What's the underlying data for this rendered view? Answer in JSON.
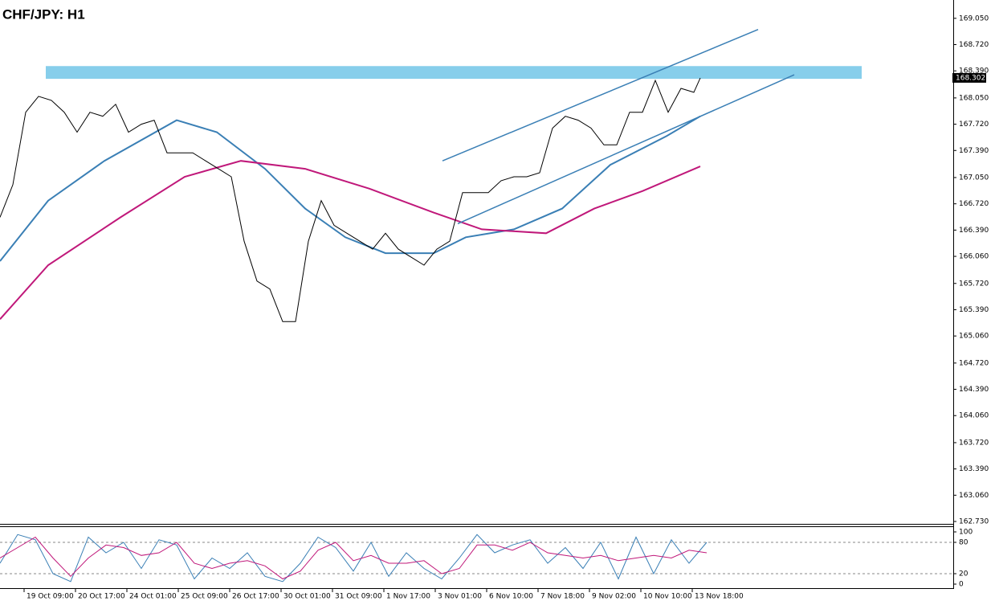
{
  "chart_data": [
    {
      "type": "line",
      "title": "CHF/JPY: H1",
      "x": [
        0,
        8,
        16,
        24,
        32,
        40,
        48,
        56,
        64,
        72,
        80,
        88,
        96,
        104,
        112,
        120,
        128,
        136,
        144,
        152,
        160,
        168,
        176,
        184,
        192,
        200,
        208,
        216,
        224,
        232,
        240,
        248,
        256,
        264,
        272,
        280,
        288,
        296,
        304,
        312,
        320,
        328,
        336,
        344,
        352,
        360,
        368,
        376,
        384,
        392,
        400,
        408,
        416,
        424,
        432,
        436
      ],
      "series": [
        {
          "name": "Price",
          "color": "#000000",
          "values": [
            166.55,
            166.96,
            167.87,
            168.07,
            168.02,
            167.87,
            167.62,
            167.87,
            167.82,
            167.97,
            167.62,
            167.72,
            167.77,
            167.36,
            167.36,
            167.36,
            167.26,
            167.16,
            167.06,
            166.25,
            165.75,
            165.65,
            165.24,
            165.24,
            166.25,
            166.76,
            166.45,
            166.35,
            166.25,
            166.15,
            166.35,
            166.15,
            166.05,
            165.95,
            166.15,
            166.25,
            166.86,
            166.86,
            166.86,
            167.01,
            167.06,
            167.06,
            167.11,
            167.67,
            167.82,
            167.77,
            167.67,
            167.46,
            167.46,
            167.87,
            167.87,
            168.27,
            167.87,
            168.17,
            168.12,
            168.3
          ]
        }
      ],
      "averages": [
        {
          "color": "#3a7fb5",
          "x": [
            0,
            30,
            65,
            110,
            135,
            165,
            190,
            215,
            240,
            270,
            290,
            320,
            350,
            380,
            415,
            436
          ],
          "values": [
            166.0,
            166.76,
            167.26,
            167.77,
            167.62,
            167.16,
            166.66,
            166.3,
            166.1,
            166.1,
            166.3,
            166.4,
            166.66,
            167.21,
            167.57,
            167.82
          ]
        },
        {
          "color": "#c0187a",
          "x": [
            0,
            30,
            75,
            115,
            150,
            190,
            230,
            270,
            300,
            340,
            370,
            400,
            436
          ],
          "values": [
            165.27,
            165.95,
            166.55,
            167.06,
            167.26,
            167.16,
            166.91,
            166.61,
            166.4,
            166.35,
            166.66,
            166.88,
            167.19
          ]
        }
      ],
      "channel": {
        "color": "#3a7fb5",
        "upper": {
          "x": [
            275.5,
            472
          ],
          "values": [
            167.26,
            168.91
          ]
        },
        "lower": {
          "x": [
            285,
            494.5
          ],
          "values": [
            166.47,
            168.34
          ]
        }
      },
      "zone": {
        "color": "#87ceeb",
        "x": [
          28.5,
          536.5
        ],
        "values": [
          168.29,
          168.45
        ]
      },
      "last_price": 168.302,
      "xlim": [
        0,
        593.5
      ],
      "ylim": [
        162.7,
        169.28
      ],
      "yticks": [
        {
          "value": 169.05,
          "label": "169.050"
        },
        {
          "value": 168.72,
          "label": "168.720"
        },
        {
          "value": 168.39,
          "label": "168.390"
        },
        {
          "value": 168.05,
          "label": "168.050"
        },
        {
          "value": 167.72,
          "label": "167.720"
        },
        {
          "value": 167.39,
          "label": "167.390"
        },
        {
          "value": 167.05,
          "label": "167.050"
        },
        {
          "value": 166.72,
          "label": "166.720"
        },
        {
          "value": 166.39,
          "label": "166.390"
        },
        {
          "value": 166.06,
          "label": "166.060"
        },
        {
          "value": 165.72,
          "label": "165.720"
        },
        {
          "value": 165.39,
          "label": "165.390"
        },
        {
          "value": 165.06,
          "label": "165.060"
        },
        {
          "value": 164.72,
          "label": "164.720"
        },
        {
          "value": 164.39,
          "label": "164.390"
        },
        {
          "value": 164.06,
          "label": "164.060"
        },
        {
          "value": 163.72,
          "label": "163.720"
        },
        {
          "value": 163.39,
          "label": "163.390"
        },
        {
          "value": 163.06,
          "label": "163.060"
        },
        {
          "value": 162.73,
          "label": "162.730"
        }
      ],
      "xticks": [
        {
          "value": 15,
          "label": "19 Oct 09:00"
        },
        {
          "value": 47,
          "label": "20 Oct 17:00"
        },
        {
          "value": 79,
          "label": "24 Oct 01:00"
        },
        {
          "value": 111,
          "label": "25 Oct 09:00"
        },
        {
          "value": 143,
          "label": "26 Oct 17:00"
        },
        {
          "value": 175,
          "label": "30 Oct 01:00"
        },
        {
          "value": 207,
          "label": "31 Oct 09:00"
        },
        {
          "value": 239,
          "label": "1 Nov 17:00"
        },
        {
          "value": 271,
          "label": "3 Nov 01:00"
        },
        {
          "value": 303,
          "label": "6 Nov 10:00"
        },
        {
          "value": 335,
          "label": "7 Nov 18:00"
        },
        {
          "value": 367,
          "label": "9 Nov 02:00"
        },
        {
          "value": 399,
          "label": "10 Nov 10:00"
        },
        {
          "value": 431,
          "label": "13 Nov 18:00"
        }
      ]
    },
    {
      "type": "oscillator",
      "x": [
        0,
        11,
        22,
        33,
        44,
        55,
        66,
        77,
        88,
        99,
        110,
        121,
        132,
        143,
        154,
        165,
        176,
        187,
        198,
        209,
        220,
        231,
        242,
        253,
        264,
        275,
        286,
        297,
        308,
        319,
        330,
        341,
        352,
        363,
        374,
        385,
        396,
        407,
        418,
        429,
        440
      ],
      "series": [
        {
          "color": "#3a7fb5",
          "values": [
            40,
            95,
            85,
            20,
            5,
            90,
            60,
            80,
            30,
            85,
            75,
            10,
            50,
            30,
            60,
            15,
            5,
            40,
            90,
            70,
            25,
            80,
            15,
            60,
            30,
            10,
            50,
            95,
            60,
            75,
            85,
            40,
            70,
            30,
            80,
            10,
            90,
            20,
            85,
            40,
            80
          ]
        },
        {
          "color": "#c0187a",
          "values": [
            50,
            70,
            90,
            50,
            15,
            50,
            75,
            70,
            55,
            60,
            80,
            40,
            30,
            40,
            45,
            35,
            10,
            25,
            65,
            80,
            45,
            55,
            40,
            40,
            45,
            20,
            30,
            75,
            75,
            65,
            80,
            60,
            55,
            50,
            55,
            45,
            50,
            55,
            50,
            65,
            60
          ]
        }
      ],
      "xlim": [
        0,
        593.5
      ],
      "ylim": [
        0,
        100
      ],
      "yticks": [
        100,
        80,
        20,
        0
      ],
      "levels": [
        80,
        20
      ]
    }
  ]
}
